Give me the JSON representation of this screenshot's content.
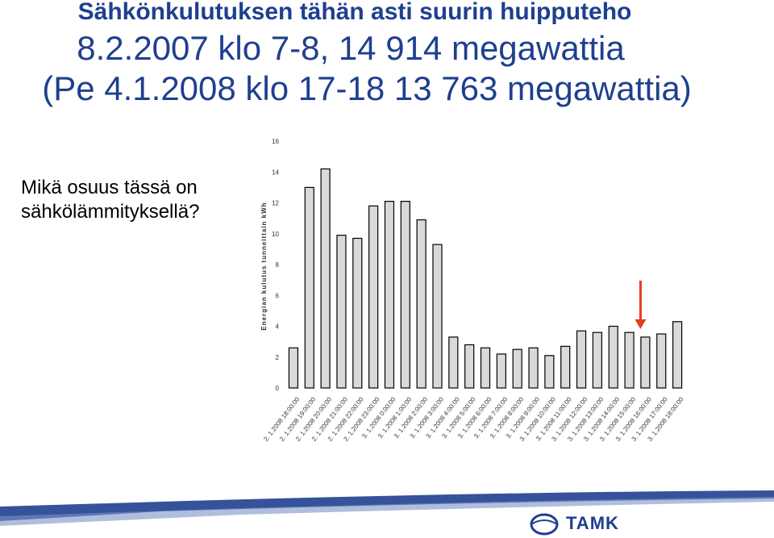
{
  "title": {
    "line1": "Sähkönkulutuksen tähän asti suurin huipputeho",
    "line2": "8.2.2007 klo 7-8, 14 914 megawattia",
    "line3": "(Pe 4.1.2008 klo 17-18 13 763 megawattia)"
  },
  "question": "Mikä osuus tässä on sähkölämmityksellä?",
  "logo": "TAMK",
  "colors": {
    "title": "#1f3f8f",
    "bar": "#d9d9d9",
    "arrow": "#e0401a",
    "band": "#1f3f8f"
  },
  "chart_data": {
    "type": "bar",
    "ylabel": "Energian kulutus tunneittain kWh",
    "ylim": [
      0,
      16
    ],
    "yticks": [
      0,
      2,
      4,
      6,
      8,
      10,
      12,
      14,
      16
    ],
    "categories": [
      "2. 1.2008 18:00:00",
      "2. 1.2008 19:00:00",
      "2. 1.2008 20:00:00",
      "2. 1.2008 21:00:00",
      "2. 1.2008 22:00:00",
      "2. 1.2008 23:00:00",
      "3. 1.2008 0:00:00",
      "3. 1.2008 1:00:00",
      "3. 1.2008 2:00:00",
      "3. 1.2008 3:00:00",
      "3. 1.2008 4:00:00",
      "3. 1.2008 5:00:00",
      "3. 1.2008 6:00:00",
      "3. 1.2008 7:00:00",
      "3. 1.2008 8:00:00",
      "3. 1.2008 9:00:00",
      "3. 1.2008 10:00:00",
      "3. 1.2008 11:00:00",
      "3. 1.2008 12:00:00",
      "3. 1.2008 13:00:00",
      "3. 1.2008 14:00:00",
      "3. 1.2008 15:00:00",
      "3. 1.2008 16:00:00",
      "3. 1.2008 17:00:00",
      "3. 1.2008 18:00:00"
    ],
    "values": [
      2.6,
      13.0,
      14.2,
      9.9,
      9.7,
      11.8,
      12.1,
      12.1,
      10.9,
      9.3,
      3.3,
      2.8,
      2.6,
      2.2,
      2.5,
      2.6,
      2.1,
      2.7,
      3.7,
      3.6,
      4.0,
      3.6,
      3.3,
      3.5,
      4.3
    ],
    "annotations": [
      {
        "type": "arrow",
        "category_index": 22
      }
    ]
  }
}
